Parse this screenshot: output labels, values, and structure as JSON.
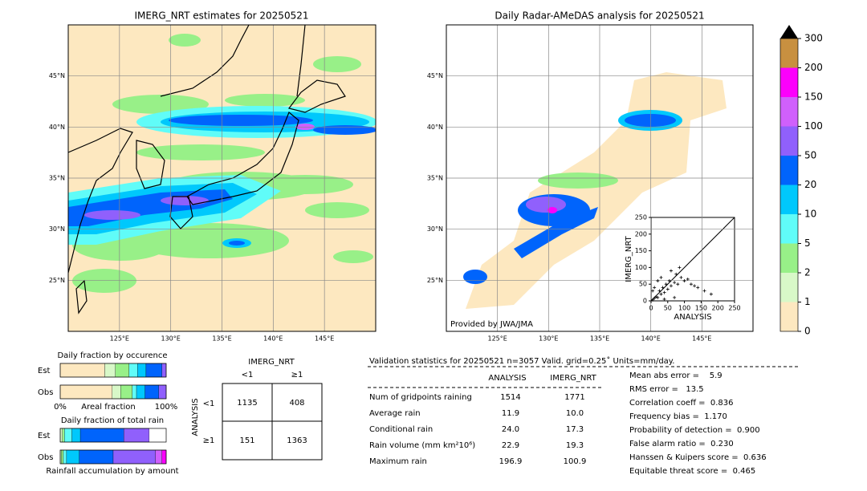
{
  "maps": [
    {
      "title": "IMERG_NRT estimates for 20250521",
      "xlim": [
        120,
        150
      ],
      "ylim": [
        20,
        50
      ],
      "xticks": [
        {
          "value": 125,
          "label": "125°E"
        },
        {
          "value": 130,
          "label": "130°E"
        },
        {
          "value": 135,
          "label": "135°E"
        },
        {
          "value": 140,
          "label": "140°E"
        },
        {
          "value": 145,
          "label": "145°E"
        }
      ],
      "yticks": [
        {
          "value": 25,
          "label": "25°N"
        },
        {
          "value": 30,
          "label": "30°N"
        },
        {
          "value": 35,
          "label": "35°N"
        },
        {
          "value": 40,
          "label": "40°N"
        },
        {
          "value": 45,
          "label": "45°N"
        }
      ]
    },
    {
      "title": "Daily Radar-AMeDAS analysis for 20250521",
      "xlim": [
        120,
        150
      ],
      "ylim": [
        20,
        50
      ],
      "xticks": [
        {
          "value": 125,
          "label": "125°E"
        },
        {
          "value": 130,
          "label": "130°E"
        },
        {
          "value": 135,
          "label": "135°E"
        },
        {
          "value": 140,
          "label": "140°E"
        },
        {
          "value": 145,
          "label": "145°E"
        }
      ],
      "yticks": [
        {
          "value": 25,
          "label": "25°N"
        },
        {
          "value": 30,
          "label": "30°N"
        },
        {
          "value": 35,
          "label": "35°N"
        },
        {
          "value": 40,
          "label": "40°N"
        },
        {
          "value": 45,
          "label": "45°N"
        }
      ],
      "credit": "Provided by JWA/JMA"
    }
  ],
  "colorbar": {
    "ticks": [
      0,
      1,
      2,
      5,
      10,
      20,
      50,
      100,
      150,
      200,
      300
    ],
    "colors": [
      "#fde8c0",
      "#d8f8c8",
      "#98f088",
      "#60fcf8",
      "#00c8fc",
      "#0064fc",
      "#9060fc",
      "#d060fc",
      "#fc00fc",
      "#c89040"
    ],
    "extend_color": "#000000"
  },
  "scatter": {
    "type": "scatter",
    "xlabel": "ANALYSIS",
    "ylabel": "IMERG_NRT",
    "xlim": [
      0,
      250
    ],
    "ylim": [
      0,
      250
    ],
    "xticks": [
      0,
      50,
      100,
      150,
      200,
      250
    ],
    "yticks": [
      0,
      50,
      100,
      150,
      200,
      250
    ],
    "color": "#000000",
    "x": [
      5,
      10,
      15,
      20,
      25,
      30,
      35,
      40,
      45,
      50,
      55,
      60,
      70,
      75,
      80,
      90,
      100,
      110,
      120,
      130,
      140,
      160,
      180,
      10,
      20,
      30,
      5,
      60,
      85,
      40,
      70
    ],
    "y": [
      3,
      8,
      12,
      10,
      30,
      20,
      40,
      25,
      50,
      35,
      60,
      45,
      55,
      80,
      50,
      70,
      60,
      65,
      50,
      45,
      40,
      30,
      20,
      40,
      60,
      70,
      30,
      90,
      100,
      5,
      10
    ]
  },
  "occurrence": {
    "title": "Daily fraction by occurence",
    "xlabel": "Areal fraction",
    "xticks": [
      {
        "value": 0,
        "label": "0%"
      },
      {
        "value": 100,
        "label": "100%"
      }
    ],
    "colors": [
      "#fde8c0",
      "#d8f8c8",
      "#98f088",
      "#60fcf8",
      "#00c8fc",
      "#0064fc",
      "#9060fc"
    ],
    "rows": [
      {
        "name": "Est",
        "values": [
          42,
          10,
          13,
          8,
          8,
          15,
          4
        ]
      },
      {
        "name": "Obs",
        "values": [
          49,
          8,
          11,
          4,
          8,
          13,
          7
        ]
      }
    ]
  },
  "total_rain": {
    "title": "Daily fraction of total rain",
    "xlabel": "Rainfall accumulation by amount",
    "colors": [
      "#d8f8c8",
      "#98f088",
      "#60fcf8",
      "#00c8fc",
      "#0064fc",
      "#9060fc",
      "#d060fc",
      "#fc00fc"
    ],
    "rows": [
      {
        "name": "Est",
        "values": [
          2,
          2,
          7,
          8,
          41,
          24,
          0,
          0
        ]
      },
      {
        "name": "Obs",
        "values": [
          1,
          2,
          3,
          12,
          32,
          40,
          6,
          4
        ]
      }
    ]
  },
  "contingency": {
    "column_title": "IMERG_NRT",
    "row_title": "ANALYSIS",
    "columns": [
      "<1",
      "≥1"
    ],
    "rows": [
      "<1",
      "≥1"
    ],
    "cells": [
      [
        "1135",
        "408"
      ],
      [
        "151",
        "1363"
      ]
    ]
  },
  "stats": {
    "title": "Validation statistics for 20250521  n=3057 Valid. grid=0.25˚ Units=mm/day.",
    "columns": [
      "ANALYSIS",
      "IMERG_NRT"
    ],
    "rows": [
      {
        "label": "Num of gridpoints raining",
        "values": [
          "1514",
          "1771"
        ]
      },
      {
        "label": "Average rain",
        "values": [
          "11.9",
          "10.0"
        ]
      },
      {
        "label": "Conditional rain",
        "values": [
          "24.0",
          "17.3"
        ]
      },
      {
        "label": "Rain volume (mm km²10⁶)",
        "values": [
          "22.9",
          "19.3"
        ]
      },
      {
        "label": "Maximum rain",
        "values": [
          "196.9",
          "100.9"
        ]
      }
    ],
    "scores": [
      "Mean abs error =    5.9",
      "RMS error =   13.5",
      "Correlation coeff =  0.836",
      "Frequency bias =  1.170",
      "Probability of detection =  0.900",
      "False alarm ratio =  0.230",
      "Hanssen & Kuipers score =  0.636",
      "Equitable threat score =  0.465"
    ]
  }
}
